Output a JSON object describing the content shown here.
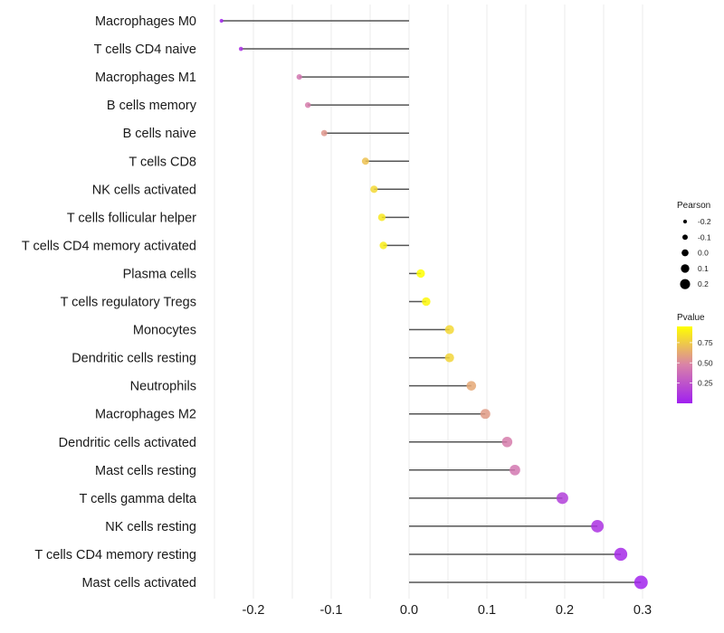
{
  "chart_data": {
    "type": "lollipop",
    "title": "",
    "xlabel": "",
    "ylabel": "",
    "xlim": [
      -0.255,
      0.302
    ],
    "x_ticks": [
      -0.2,
      -0.1,
      0.0,
      0.1,
      0.2,
      0.3
    ],
    "x_tick_labels": [
      "-0.2",
      "-0.1",
      "0.0",
      "0.1",
      "0.2",
      "0.3"
    ],
    "grid": true,
    "categories": [
      "Macrophages M0",
      "T cells CD4 naive",
      "Macrophages M1",
      "B cells memory",
      "B cells naive",
      "T cells CD8",
      "NK cells activated",
      "T cells follicular helper",
      "T cells CD4 memory activated",
      "Plasma cells",
      "T cells regulatory  Tregs ",
      "Monocytes",
      "Dendritic cells resting",
      "Neutrophils",
      "Macrophages M2",
      "Dendritic cells activated",
      "Mast cells resting",
      "T cells gamma delta",
      "NK cells resting",
      "T cells CD4 memory resting",
      "Mast cells activated"
    ],
    "pearson": [
      -0.241,
      -0.216,
      -0.141,
      -0.13,
      -0.109,
      -0.056,
      -0.045,
      -0.035,
      -0.033,
      0.015,
      0.022,
      0.052,
      0.052,
      0.08,
      0.098,
      0.126,
      0.136,
      0.197,
      0.242,
      0.272,
      0.298
    ],
    "pvalue": [
      0.02,
      0.08,
      0.42,
      0.45,
      0.55,
      0.72,
      0.8,
      0.86,
      0.88,
      0.95,
      0.92,
      0.8,
      0.79,
      0.62,
      0.57,
      0.45,
      0.42,
      0.15,
      0.09,
      0.05,
      0.02
    ],
    "legend": {
      "size": {
        "title": "Pearson",
        "labels": [
          "-0.2",
          "-0.1",
          "0.0",
          "0.1",
          "0.2"
        ],
        "values": [
          -0.2,
          -0.1,
          0.0,
          0.1,
          0.2
        ]
      },
      "color": {
        "title": "Pvalue",
        "labels": [
          "0.75",
          "0.50",
          "0.25"
        ],
        "values": [
          0.75,
          0.5,
          0.25
        ],
        "range": [
          0.0,
          0.95
        ],
        "low_color": "#a020f0",
        "mid_color": "#d982a8",
        "high_color": "#ffff00"
      },
      "position": "right"
    }
  },
  "colors": {
    "segment": "#555555",
    "grid": "#ebebeb",
    "text": "#1a1a1a"
  }
}
